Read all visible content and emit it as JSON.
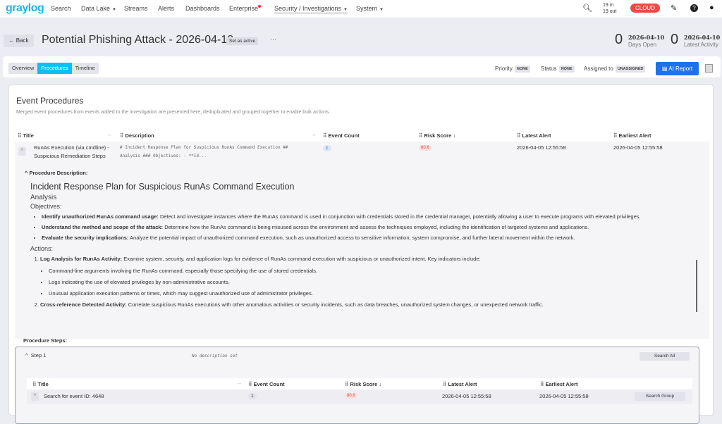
{
  "nav": {
    "logo": "graylog",
    "items": [
      {
        "label": "Search"
      },
      {
        "label": "Data Lake"
      },
      {
        "label": "Streams"
      },
      {
        "label": "Alerts"
      },
      {
        "label": "Dashboards"
      },
      {
        "label": "Enterprise"
      },
      {
        "label": "Security / Investigations"
      },
      {
        "label": "System"
      }
    ],
    "throughput_in": "19 in",
    "throughput_out": "19 out",
    "cloud": "CLOUD"
  },
  "header": {
    "back": "Back",
    "title": "Potential Phishing Attack - 2026-04-10",
    "set_active": "Set as active",
    "more": "···",
    "stats": [
      {
        "value": "0",
        "date": "2026-04-10",
        "label": "Days Open"
      },
      {
        "value": "0",
        "date": "2026-04-10",
        "label": "Latest Activity"
      }
    ]
  },
  "tabs": [
    {
      "label": "Overview"
    },
    {
      "label": "Procedures",
      "active": true
    },
    {
      "label": "Timeline"
    }
  ],
  "meta": {
    "priority_label": "Priority",
    "priority": "NONE",
    "status_label": "Status",
    "status": "NONE",
    "assigned_label": "Assigned to",
    "assigned": "UNASSIGNED",
    "ai_report": "AI Report"
  },
  "procedures": {
    "title": "Event Procedures",
    "subtitle": "Merged event procedures from events added to the investigation are presented here, deduplicated and grouped together to enable bulk actions.",
    "columns": [
      "Title",
      "Description",
      "Event Count",
      "Risk Score",
      "Latest Alert",
      "Earliest Alert"
    ],
    "row": {
      "title_line1": "RunAs Execution (via cmdline) -",
      "title_line2": "Suspicious Remediation Steps",
      "desc_line1": "# Incident Response Plan for Suspicious RunAs Command Execution ##",
      "desc_line2": "Analysis ### Objectives: - **Id...",
      "event_count": "1",
      "risk_score": "80.6",
      "latest": "2026-04-05 12:55:58",
      "earliest": "2026-04-05 12:55:58"
    },
    "description_label": "Procedure Description:",
    "md": {
      "h1": "Incident Response Plan for Suspicious RunAs Command Execution",
      "h2": "Analysis",
      "h3_objectives": "Objectives:",
      "objectives": [
        {
          "b": "Identify unauthorized RunAs command usage:",
          "t": " Detect and investigate instances where the RunAs command is used in conjunction with credentials stored in the credential manager, potentially allowing a user to execute programs with elevated privileges."
        },
        {
          "b": "Understand the method and scope of the attack:",
          "t": " Determine how the RunAs command is being misused across the environment and assess the techniques employed, including the identification of targeted systems and applications."
        },
        {
          "b": "Evaluate the security implications:",
          "t": " Analyze the potential impact of unauthorized command execution, such as unauthorized access to sensitive information, system compromise, and further lateral movement within the network."
        }
      ],
      "h3_actions": "Actions:",
      "actions": [
        {
          "b": "Log Analysis for RunAs Activity:",
          "t": " Examine system, security, and application logs for evidence of RunAs command execution with suspicious or unauthorized intent. Key indicators include:",
          "sub": [
            "Command-line arguments involving the RunAs command, especially those specifying the use of stored credentials.",
            "Logs indicating the use of elevated privileges by non-administrative accounts.",
            "Unusual application execution patterns or times, which may suggest unauthorized use of administrator privileges."
          ]
        },
        {
          "b": "Cross-reference Detected Activity:",
          "t": " Correlate suspicious RunAs executions with other anomalous activities or security incidents, such as data breaches, unauthorized system changes, or unexpected network traffic."
        }
      ]
    },
    "steps_label": "Procedure Steps:",
    "step": {
      "name": "Step 1",
      "desc": "No description set",
      "search_all": "Search All",
      "columns": [
        "Title",
        "Event Count",
        "Risk Score",
        "Latest Alert",
        "Earliest Alert"
      ],
      "row": {
        "title": "Search for event ID: 4648",
        "event_count": "1",
        "risk_score": "80.6",
        "latest": "2026-04-05 12:55:58",
        "earliest": "2026-04-05 12:55:58",
        "action": "Search Group"
      }
    }
  },
  "colors": {
    "accent": "#0ac0f0",
    "primary_button": "#1f72e8",
    "cloud": "#f04a45",
    "risk": "#e0453c"
  }
}
